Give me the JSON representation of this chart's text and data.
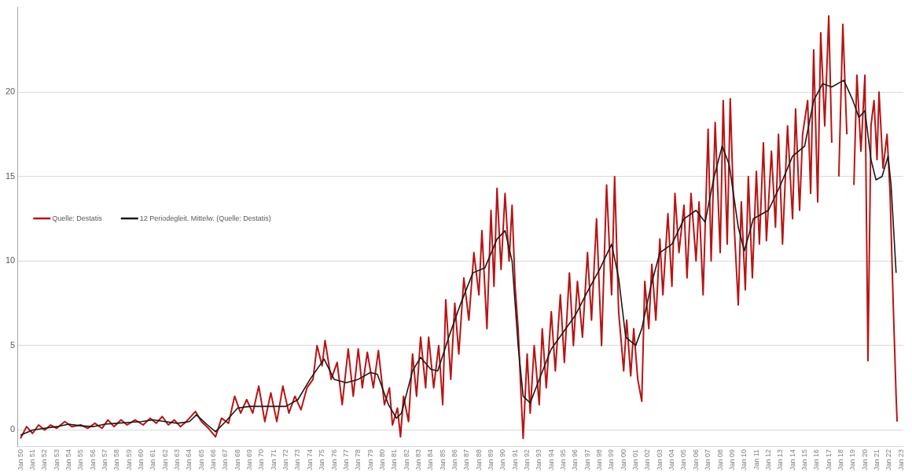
{
  "chart_data": {
    "type": "line",
    "legend": "left",
    "grid": "y",
    "marker": "none",
    "line_style": "solid",
    "xlim": [
      "1949-10",
      "2023-03"
    ],
    "ylim": [
      -1,
      25
    ],
    "yticks": [
      0,
      5,
      10,
      15,
      20
    ],
    "xticks": [
      {
        "value": "1950-01",
        "label": "Jan 50"
      },
      {
        "value": "1951-01",
        "label": "Jan 51"
      },
      {
        "value": "1952-01",
        "label": "Jan 52"
      },
      {
        "value": "1953-01",
        "label": "Jan 53"
      },
      {
        "value": "1954-01",
        "label": "Jan 54"
      },
      {
        "value": "1955-01",
        "label": "Jan 55"
      },
      {
        "value": "1956-01",
        "label": "Jan 56"
      },
      {
        "value": "1957-01",
        "label": "Jan 57"
      },
      {
        "value": "1958-01",
        "label": "Jan 58"
      },
      {
        "value": "1959-01",
        "label": "Jan 59"
      },
      {
        "value": "1960-01",
        "label": "Jan 60"
      },
      {
        "value": "1961-01",
        "label": "Jan 61"
      },
      {
        "value": "1962-01",
        "label": "Jan 62"
      },
      {
        "value": "1963-01",
        "label": "Jan 63"
      },
      {
        "value": "1964-01",
        "label": "Jan 64"
      },
      {
        "value": "1965-01",
        "label": "Jan 65"
      },
      {
        "value": "1966-01",
        "label": "Jan 66"
      },
      {
        "value": "1967-01",
        "label": "Jan 67"
      },
      {
        "value": "1968-01",
        "label": "Jan 68"
      },
      {
        "value": "1969-01",
        "label": "Jan 69"
      },
      {
        "value": "1970-01",
        "label": "Jan 70"
      },
      {
        "value": "1971-01",
        "label": "Jan 71"
      },
      {
        "value": "1972-01",
        "label": "Jan 72"
      },
      {
        "value": "1973-01",
        "label": "Jan 73"
      },
      {
        "value": "1974-01",
        "label": "Jan 74"
      },
      {
        "value": "1975-01",
        "label": "Jan 75"
      },
      {
        "value": "1976-01",
        "label": "Jan 76"
      },
      {
        "value": "1977-01",
        "label": "Jan 77"
      },
      {
        "value": "1978-01",
        "label": "Jan 78"
      },
      {
        "value": "1979-01",
        "label": "Jan 79"
      },
      {
        "value": "1980-01",
        "label": "Jan 80"
      },
      {
        "value": "1981-01",
        "label": "Jan 81"
      },
      {
        "value": "1982-01",
        "label": "Jan 82"
      },
      {
        "value": "1983-01",
        "label": "Jan 83"
      },
      {
        "value": "1984-01",
        "label": "Jan 84"
      },
      {
        "value": "1985-01",
        "label": "Jan 85"
      },
      {
        "value": "1986-01",
        "label": "Jan 86"
      },
      {
        "value": "1987-01",
        "label": "Jan 87"
      },
      {
        "value": "1988-01",
        "label": "Jan 88"
      },
      {
        "value": "1989-01",
        "label": "Jan 89"
      },
      {
        "value": "1990-01",
        "label": "Jan 90"
      },
      {
        "value": "1991-01",
        "label": "Jan 91"
      },
      {
        "value": "1992-01",
        "label": "Jan 92"
      },
      {
        "value": "1993-01",
        "label": "Jan 93"
      },
      {
        "value": "1994-01",
        "label": "Jan 94"
      },
      {
        "value": "1995-01",
        "label": "Jan 95"
      },
      {
        "value": "1996-01",
        "label": "Jan 96"
      },
      {
        "value": "1997-01",
        "label": "Jan 97"
      },
      {
        "value": "1998-01",
        "label": "Jan 98"
      },
      {
        "value": "1999-01",
        "label": "Jan 99"
      },
      {
        "value": "2000-01",
        "label": "Jan 00"
      },
      {
        "value": "2001-01",
        "label": "Jan 01"
      },
      {
        "value": "2002-01",
        "label": "Jan 02"
      },
      {
        "value": "2003-01",
        "label": "Jan 03"
      },
      {
        "value": "2004-01",
        "label": "Jan 04"
      },
      {
        "value": "2005-01",
        "label": "Jan 05"
      },
      {
        "value": "2006-01",
        "label": "Jan 06"
      },
      {
        "value": "2007-01",
        "label": "Jan 07"
      },
      {
        "value": "2008-01",
        "label": "Jan 08"
      },
      {
        "value": "2009-01",
        "label": "Jan 09"
      },
      {
        "value": "2010-01",
        "label": "Jan 10"
      },
      {
        "value": "2011-01",
        "label": "Jan 11"
      },
      {
        "value": "2012-01",
        "label": "Jan 12"
      },
      {
        "value": "2013-01",
        "label": "Jan 13"
      },
      {
        "value": "2014-01",
        "label": "Jan 14"
      },
      {
        "value": "2015-01",
        "label": "Jan 15"
      },
      {
        "value": "2016-01",
        "label": "Jan 16"
      },
      {
        "value": "2017-01",
        "label": "Jan 17"
      },
      {
        "value": "2018-01",
        "label": "Jan 18"
      },
      {
        "value": "2019-01",
        "label": "Jan 19"
      },
      {
        "value": "2020-01",
        "label": "Jan 20"
      },
      {
        "value": "2021-01",
        "label": "Jan 21"
      },
      {
        "value": "2022-01",
        "label": "Jan 22"
      },
      {
        "value": "2023-01",
        "label": "Jan 23"
      }
    ],
    "series": [
      {
        "name": "Quelle: Destatis",
        "color": "#b81414",
        "x": [
          "1950-01",
          "1950-07",
          "1951-01",
          "1951-07",
          "1952-01",
          "1952-07",
          "1953-01",
          "1953-09",
          "1954-04",
          "1955-01",
          "1955-08",
          "1956-03",
          "1956-10",
          "1957-04",
          "1957-10",
          "1958-05",
          "1958-11",
          "1959-07",
          "1960-03",
          "1960-10",
          "1961-04",
          "1961-10",
          "1962-04",
          "1962-10",
          "1963-04",
          "1963-10",
          "1964-07",
          "1965-01",
          "1965-08",
          "1966-03",
          "1966-09",
          "1967-04",
          "1967-10",
          "1968-04",
          "1968-10",
          "1969-04",
          "1969-10",
          "1970-04",
          "1970-10",
          "1971-04",
          "1971-10",
          "1972-04",
          "1972-10",
          "1973-04",
          "1973-10",
          "1974-04",
          "1974-08",
          "1975-01",
          "1975-04",
          "1975-10",
          "1976-04",
          "1976-09",
          "1977-03",
          "1977-08",
          "1978-01",
          "1978-05",
          "1978-10",
          "1979-04",
          "1979-09",
          "1980-03",
          "1980-08",
          "1980-11",
          "1981-04",
          "1981-07",
          "1981-10",
          "1982-03",
          "1982-07",
          "1982-11",
          "1983-03",
          "1983-08",
          "1983-11",
          "1984-04",
          "1984-09",
          "1985-01",
          "1985-04",
          "1985-09",
          "1986-01",
          "1986-05",
          "1986-10",
          "1987-03",
          "1987-08",
          "1988-01",
          "1988-04",
          "1988-09",
          "1989-01",
          "1989-04",
          "1989-07",
          "1989-11",
          "1990-03",
          "1990-07",
          "1990-10",
          "1991-01",
          "1991-04",
          "1991-07",
          "1991-09",
          "1992-01",
          "1992-04",
          "1992-08",
          "1993-01",
          "1993-04",
          "1993-08",
          "1994-01",
          "1994-05",
          "1994-10",
          "1995-02",
          "1995-07",
          "1995-11",
          "1996-03",
          "1996-08",
          "1997-01",
          "1997-05",
          "1997-10",
          "1998-03",
          "1998-08",
          "1999-01",
          "1999-04",
          "1999-08",
          "2000-01",
          "2000-04",
          "2000-08",
          "2000-11",
          "2001-03",
          "2001-07",
          "2001-10",
          "2002-02",
          "2002-05",
          "2002-09",
          "2003-01",
          "2003-04",
          "2003-09",
          "2004-01",
          "2004-04",
          "2004-08",
          "2005-01",
          "2005-04",
          "2005-08",
          "2006-01",
          "2006-04",
          "2006-08",
          "2007-01",
          "2007-04",
          "2007-08",
          "2008-01",
          "2008-04",
          "2008-08",
          "2008-11",
          "2009-03",
          "2009-07",
          "2009-10",
          "2010-02",
          "2010-05",
          "2010-09",
          "2011-01",
          "2011-04",
          "2011-08",
          "2011-11",
          "2012-04",
          "2012-08",
          "2012-11",
          "2013-03",
          "2013-08",
          "2014-01",
          "2014-04",
          "2014-08",
          "2014-11",
          "2015-04",
          "2015-07",
          "2015-10",
          "2016-02",
          "2016-05",
          "2016-09",
          "2017-01",
          "2017-04",
          "2017-08",
          "2017-11",
          "2018-03",
          "2018-07",
          "2018-10",
          "2019-02",
          "2019-05",
          "2019-09",
          "2020-01",
          "2020-04",
          "2020-07",
          "2020-10",
          "2021-01",
          "2021-03",
          "2021-07",
          "2021-11",
          "2022-02",
          "2022-05",
          "2022-08",
          "2022-09"
        ],
        "values": [
          -0.5,
          0.2,
          -0.2,
          0.3,
          0,
          0.3,
          0.1,
          0.5,
          0.2,
          0.3,
          0.1,
          0.4,
          0.1,
          0.6,
          0.2,
          0.6,
          0.3,
          0.6,
          0.3,
          0.7,
          0.4,
          0.8,
          0.3,
          0.6,
          0.2,
          0.5,
          1.1,
          0.5,
          0.1,
          -0.4,
          0.7,
          0.4,
          2,
          1,
          1.8,
          1,
          2.6,
          0.5,
          2.2,
          0.5,
          2.6,
          1,
          2,
          1.2,
          2.5,
          3,
          5,
          3.8,
          5.3,
          3,
          4,
          1.5,
          4.8,
          2,
          4.8,
          2.5,
          4.6,
          2.5,
          4.7,
          1.5,
          2.5,
          0.3,
          1.3,
          -0.4,
          2,
          0.5,
          4.5,
          2,
          5.5,
          2.5,
          5.5,
          2.5,
          5,
          1.5,
          7.7,
          3,
          7.5,
          4.5,
          9,
          6.5,
          10.5,
          8,
          11.8,
          6,
          13,
          8.5,
          14.3,
          9.5,
          14,
          10,
          13.3,
          8.5,
          6,
          2,
          -0.5,
          4.5,
          1,
          5,
          1.5,
          6,
          2.5,
          7,
          3.5,
          8,
          4,
          9.3,
          5,
          8.8,
          5.5,
          10.5,
          6.5,
          12.5,
          5,
          14.5,
          8,
          15,
          7,
          3.5,
          6.5,
          3.2,
          6,
          3,
          1.7,
          8.8,
          6,
          9.8,
          6.5,
          11.3,
          8,
          12.8,
          8.5,
          14,
          10.5,
          13.3,
          9,
          14,
          10,
          13.5,
          8,
          17.8,
          10,
          18.2,
          10.5,
          19.5,
          11,
          19.6,
          12,
          7.4,
          13.5,
          8.3,
          15,
          9,
          15.3,
          11,
          17,
          11.2,
          16.5,
          12,
          17.5,
          11,
          18,
          12.5,
          19,
          13,
          17.5,
          19.5,
          14,
          22.5,
          13.5,
          23.5,
          18,
          24.5,
          17,
          null,
          15,
          24,
          17.5,
          null,
          14.5,
          21,
          16.5,
          21,
          4.1,
          18,
          19.5,
          16,
          20,
          15.5,
          17.5,
          14,
          7.7,
          2,
          0.5
        ]
      },
      {
        "name": "12 Periodegleit. Mittelw. (Quelle: Destatis)",
        "color": "#1a1a1a",
        "x": [
          "1950-01",
          "1951-01",
          "1952-01",
          "1953-01",
          "1954-01",
          "1955-01",
          "1956-01",
          "1957-01",
          "1958-01",
          "1959-01",
          "1960-01",
          "1961-01",
          "1962-01",
          "1963-01",
          "1964-01",
          "1964-08",
          "1965-07",
          "1966-03",
          "1967-01",
          "1968-01",
          "1969-01",
          "1970-01",
          "1971-01",
          "1972-01",
          "1973-01",
          "1974-01",
          "1975-03",
          "1976-01",
          "1977-01",
          "1978-01",
          "1979-01",
          "1979-08",
          "1980-07",
          "1981-03",
          "1981-08",
          "1982-07",
          "1983-03",
          "1984-01",
          "1984-08",
          "1985-07",
          "1986-07",
          "1987-07",
          "1988-07",
          "1989-07",
          "1990-03",
          "1990-10",
          "1991-04",
          "1991-09",
          "1992-04",
          "1993-01",
          "1994-01",
          "1995-01",
          "1996-01",
          "1997-01",
          "1998-01",
          "1999-01",
          "1999-08",
          "2000-03",
          "2001-01",
          "2001-07",
          "2002-04",
          "2003-01",
          "2004-01",
          "2005-01",
          "2006-01",
          "2006-10",
          "2007-07",
          "2008-03",
          "2008-10",
          "2009-07",
          "2010-01",
          "2010-10",
          "2012-01",
          "2013-01",
          "2014-01",
          "2015-01",
          "2015-10",
          "2016-07",
          "2017-04",
          "2018-04",
          "2019-01",
          "2019-07",
          "2020-01",
          "2020-07",
          "2020-12",
          "2021-06",
          "2021-12",
          "2022-03",
          "2022-08"
        ],
        "values": [
          -0.3,
          0,
          0.1,
          0.2,
          0.35,
          0.25,
          0.2,
          0.35,
          0.4,
          0.45,
          0.5,
          0.6,
          0.5,
          0.4,
          0.5,
          0.9,
          0.3,
          -0.1,
          0.5,
          1.3,
          1.4,
          1.4,
          1.4,
          1.4,
          1.8,
          3,
          4.2,
          3,
          2.8,
          3,
          3.4,
          3.3,
          1.5,
          0.7,
          1,
          3.5,
          4.3,
          3.6,
          3.5,
          5.5,
          7.5,
          9.3,
          9.6,
          11.3,
          11.8,
          10,
          5,
          2,
          1.6,
          3,
          4.8,
          5.8,
          6.8,
          8.2,
          9.5,
          11,
          9,
          5.5,
          5,
          6,
          8.5,
          10.5,
          11,
          12.5,
          13,
          12.3,
          15,
          16.8,
          15.7,
          12,
          10.6,
          12.5,
          13,
          14.5,
          16.2,
          16.8,
          19.5,
          20.5,
          20.3,
          20.7,
          19.5,
          18.5,
          18.9,
          16,
          14.8,
          15,
          16.2,
          14.5,
          9.3
        ]
      }
    ]
  }
}
